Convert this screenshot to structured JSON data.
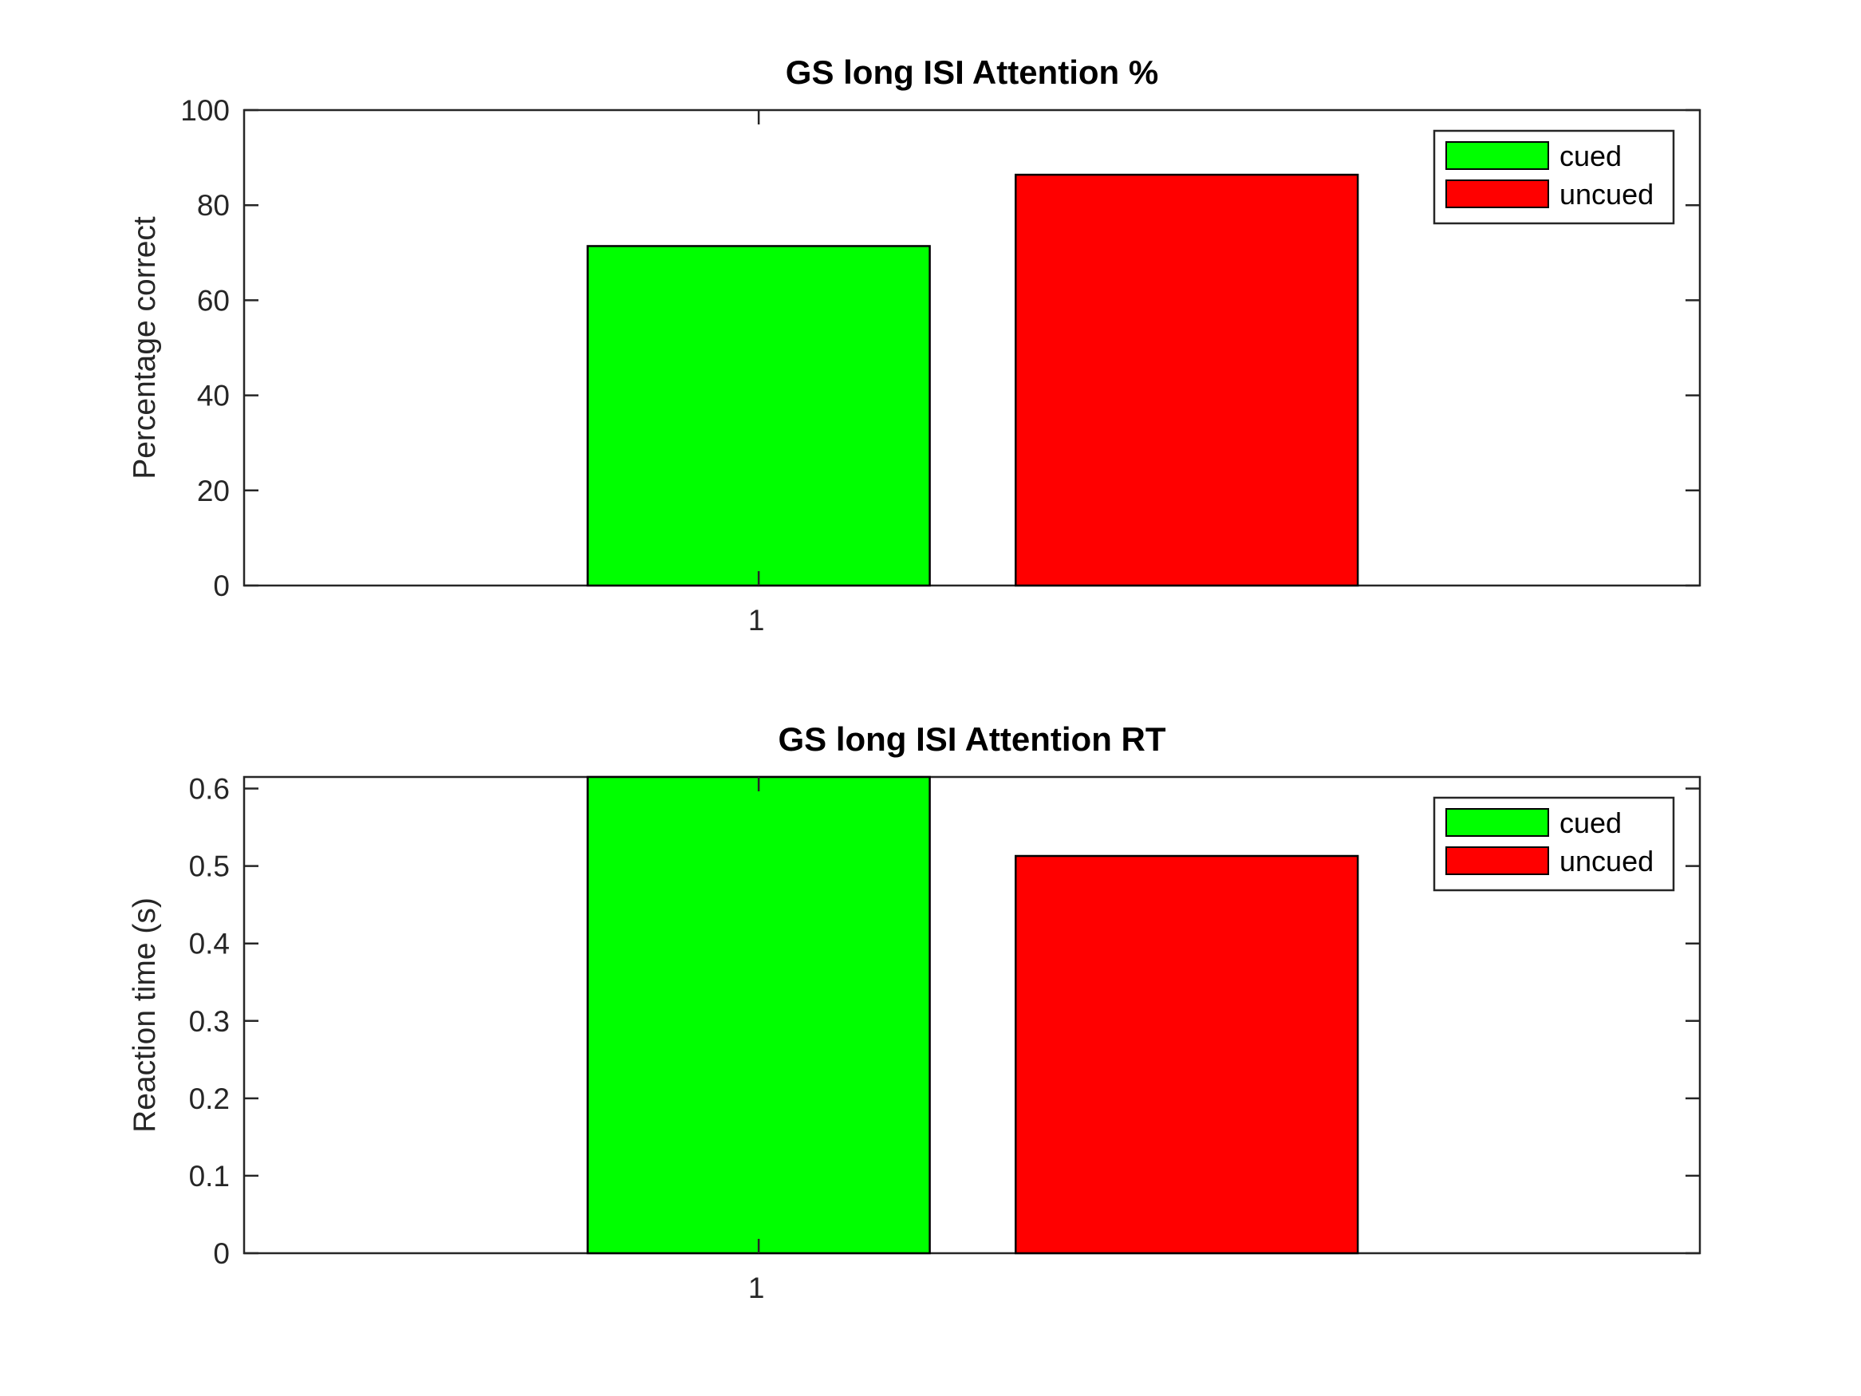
{
  "chart_data": [
    {
      "type": "bar",
      "title": "GS long ISI Attention %",
      "xlabel": "",
      "ylabel": "Percentage correct",
      "categories": [
        "1"
      ],
      "ylim": [
        0,
        100
      ],
      "yticks": [
        "0",
        "20",
        "40",
        "60",
        "80",
        "100"
      ],
      "series": [
        {
          "name": "cued",
          "values": [
            71.4
          ],
          "color": "#00ff00"
        },
        {
          "name": "uncued",
          "values": [
            86.4
          ],
          "color": "#ff0000"
        }
      ],
      "legend_position": "top-right",
      "grid": false
    },
    {
      "type": "bar",
      "title": "GS long ISI Attention RT",
      "xlabel": "",
      "ylabel": "Reaction time (s)",
      "categories": [
        "1"
      ],
      "ylim": [
        0,
        0.615
      ],
      "yticks": [
        "0",
        "0.1",
        "0.2",
        "0.3",
        "0.4",
        "0.5",
        "0.6"
      ],
      "series": [
        {
          "name": "cued",
          "values": [
            0.615
          ],
          "color": "#00ff00"
        },
        {
          "name": "uncued",
          "values": [
            0.513
          ],
          "color": "#ff0000"
        }
      ],
      "legend_position": "top-right",
      "grid": false
    }
  ]
}
